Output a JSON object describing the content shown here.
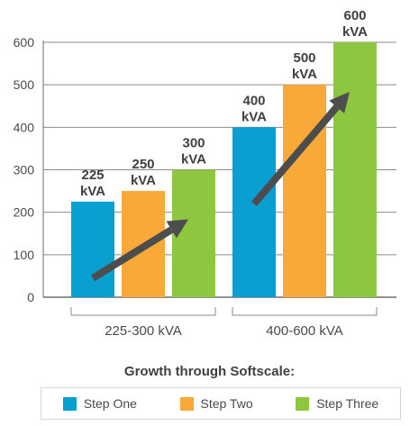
{
  "chart_data": {
    "type": "bar",
    "title": "Growth through Softscale:",
    "xlabel": "",
    "ylabel": "",
    "ylim": [
      0,
      600
    ],
    "yticks": [
      0,
      100,
      200,
      300,
      400,
      500,
      600
    ],
    "grid": true,
    "legend_placement": "bottom",
    "groups": [
      {
        "label": "225-300 kVA",
        "bars": [
          {
            "series": "Step One",
            "value": 225,
            "label_line1": "225",
            "label_line2": "kVA"
          },
          {
            "series": "Step Two",
            "value": 250,
            "label_line1": "250",
            "label_line2": "kVA"
          },
          {
            "series": "Step Three",
            "value": 300,
            "label_line1": "300",
            "label_line2": "kVA"
          }
        ]
      },
      {
        "label": "400-600 kVA",
        "bars": [
          {
            "series": "Step One",
            "value": 400,
            "label_line1": "400",
            "label_line2": "kVA"
          },
          {
            "series": "Step Two",
            "value": 500,
            "label_line1": "500",
            "label_line2": "kVA"
          },
          {
            "series": "Step Three",
            "value": 600,
            "label_line1": "600",
            "label_line2": "kVA"
          }
        ]
      }
    ],
    "series": [
      {
        "name": "Step One",
        "color": "#0a9fd1"
      },
      {
        "name": "Step Two",
        "color": "#f9a937"
      },
      {
        "name": "Step Three",
        "color": "#8dc63f"
      }
    ],
    "annotations": [
      "growth-arrow",
      "growth-arrow"
    ]
  }
}
